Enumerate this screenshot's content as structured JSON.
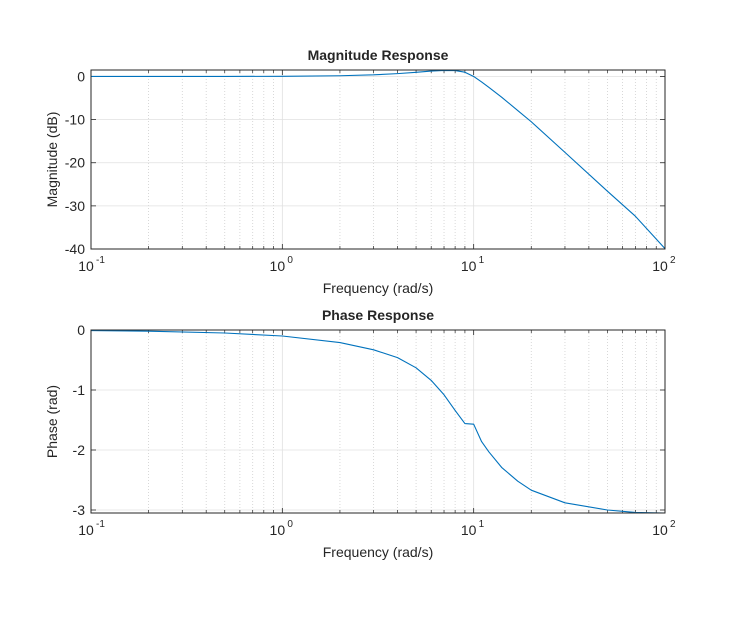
{
  "corner_text": "",
  "chart_data": [
    {
      "type": "line",
      "title": "Magnitude Response",
      "xlabel": "Frequency (rad/s)",
      "ylabel": "Magnitude (dB)",
      "xscale": "log",
      "xlim": [
        0.1,
        100
      ],
      "ylim": [
        -40,
        1.5
      ],
      "xticks": [
        {
          "value": 0.1,
          "base": "10",
          "exp": "-1"
        },
        {
          "value": 1,
          "base": "10",
          "exp": "0"
        },
        {
          "value": 10,
          "base": "10",
          "exp": "1"
        },
        {
          "value": 100,
          "base": "10",
          "exp": "2"
        }
      ],
      "yticks": [
        {
          "value": 0,
          "label": "0"
        },
        {
          "value": -10,
          "label": "-10"
        },
        {
          "value": -20,
          "label": "-20"
        },
        {
          "value": -30,
          "label": "-30"
        },
        {
          "value": -40,
          "label": "-40"
        }
      ],
      "grid": true,
      "minor_grid": true,
      "series": [
        {
          "color": "#0072BD",
          "x": [
            0.1,
            0.2,
            0.5,
            1,
            2,
            3,
            4,
            5,
            6,
            7,
            8,
            9,
            10,
            11,
            12,
            14,
            17,
            20,
            30,
            50,
            70,
            100
          ],
          "y": [
            0,
            0,
            0.01,
            0.04,
            0.17,
            0.38,
            0.66,
            0.97,
            1.25,
            1.41,
            1.37,
            0.99,
            0.0,
            -1.26,
            -2.51,
            -4.8,
            -7.9,
            -10.5,
            -17.6,
            -26.6,
            -32.4,
            -39.9
          ]
        }
      ]
    },
    {
      "type": "line",
      "title": "Phase Response",
      "xlabel": "Frequency (rad/s)",
      "ylabel": "Phase (rad)",
      "xscale": "log",
      "xlim": [
        0.1,
        100
      ],
      "ylim": [
        -3.05,
        0
      ],
      "xticks": [
        {
          "value": 0.1,
          "base": "10",
          "exp": "-1"
        },
        {
          "value": 1,
          "base": "10",
          "exp": "0"
        },
        {
          "value": 10,
          "base": "10",
          "exp": "1"
        },
        {
          "value": 100,
          "base": "10",
          "exp": "2"
        }
      ],
      "yticks": [
        {
          "value": 0,
          "label": "0"
        },
        {
          "value": -1,
          "label": "-1"
        },
        {
          "value": -2,
          "label": "-2"
        },
        {
          "value": -3,
          "label": "-3"
        }
      ],
      "grid": true,
      "minor_grid": true,
      "series": [
        {
          "color": "#0072BD",
          "x": [
            0.1,
            0.2,
            0.5,
            1,
            2,
            3,
            4,
            5,
            6,
            7,
            8,
            9,
            10,
            11,
            12,
            14,
            17,
            20,
            30,
            50,
            70,
            100
          ],
          "y": [
            -0.01,
            -0.02,
            -0.05,
            -0.1,
            -0.21,
            -0.33,
            -0.46,
            -0.63,
            -0.84,
            -1.08,
            -1.34,
            -1.56,
            -1.57,
            -1.86,
            -2.03,
            -2.29,
            -2.52,
            -2.67,
            -2.88,
            -3.0,
            -3.04,
            -3.08
          ]
        }
      ]
    }
  ]
}
